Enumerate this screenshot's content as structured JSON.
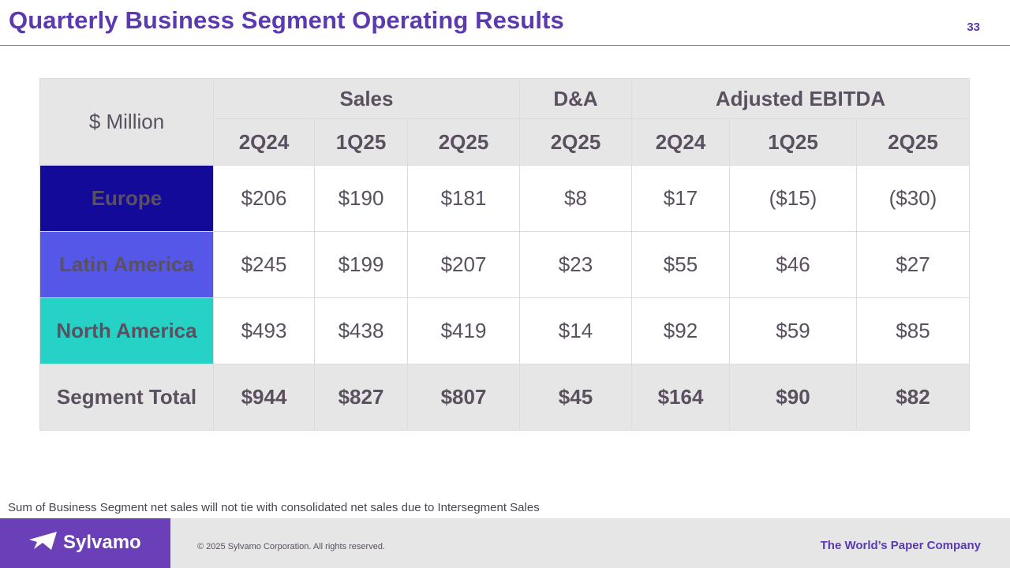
{
  "title": "Quarterly Business Segment Operating Results",
  "page_number": "33",
  "table": {
    "corner_label": "$ Million",
    "groups": [
      "Sales",
      "D&A",
      "Adjusted EBITDA"
    ],
    "periods": [
      "2Q24",
      "1Q25",
      "2Q25",
      "2Q25",
      "2Q24",
      "1Q25",
      "2Q25"
    ],
    "rows": [
      {
        "label": "Europe",
        "color": "#140a9a",
        "values": [
          "$206",
          "$190",
          "$181",
          "$8",
          "$17",
          "($15)",
          "($30)"
        ]
      },
      {
        "label": "Latin America",
        "color": "#5557e8",
        "values": [
          "$245",
          "$199",
          "$207",
          "$23",
          "$55",
          "$46",
          "$27"
        ]
      },
      {
        "label": "North America",
        "color": "#26d2c6",
        "values": [
          "$493",
          "$438",
          "$419",
          "$14",
          "$92",
          "$59",
          "$85"
        ]
      },
      {
        "label": "Segment Total",
        "color": "#e6e6e6",
        "values": [
          "$944",
          "$827",
          "$807",
          "$45",
          "$164",
          "$90",
          "$82"
        ]
      }
    ]
  },
  "footnote": "Sum of Business Segment net sales will not tie with consolidated net sales due to Intersegment Sales",
  "footer": {
    "brand": "Sylvamo",
    "copyright": "© 2025 Sylvamo Corporation. All rights reserved.",
    "tagline": "The World’s Paper Company",
    "logo_icon": "paper-plane-icon"
  },
  "colors": {
    "accent": "#5b3ab0",
    "brand_purple": "#6a3fb8",
    "header_gray": "#e6e6e6"
  }
}
